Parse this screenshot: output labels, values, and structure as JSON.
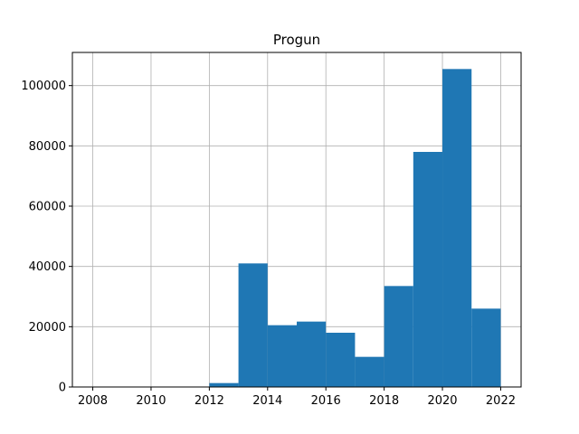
{
  "chart_data": {
    "type": "bar",
    "title": "Progun",
    "xlabel": "",
    "ylabel": "",
    "xlim": [
      2007.3,
      2022.7
    ],
    "ylim": [
      0,
      111000
    ],
    "x_ticks": [
      2008,
      2010,
      2012,
      2014,
      2016,
      2018,
      2020,
      2022
    ],
    "y_ticks": [
      0,
      20000,
      40000,
      60000,
      80000,
      100000
    ],
    "grid": true,
    "bar_color": "#1f77b4",
    "bins": [
      {
        "x0": 2012,
        "x1": 2013,
        "value": 1300
      },
      {
        "x0": 2013,
        "x1": 2014,
        "value": 41000
      },
      {
        "x0": 2014,
        "x1": 2015,
        "value": 20500
      },
      {
        "x0": 2015,
        "x1": 2016,
        "value": 21700
      },
      {
        "x0": 2016,
        "x1": 2017,
        "value": 18000
      },
      {
        "x0": 2017,
        "x1": 2018,
        "value": 10000
      },
      {
        "x0": 2018,
        "x1": 2019,
        "value": 33500
      },
      {
        "x0": 2019,
        "x1": 2020,
        "value": 78000
      },
      {
        "x0": 2020,
        "x1": 2021,
        "value": 105500
      },
      {
        "x0": 2021,
        "x1": 2022,
        "value": 26000
      }
    ]
  }
}
